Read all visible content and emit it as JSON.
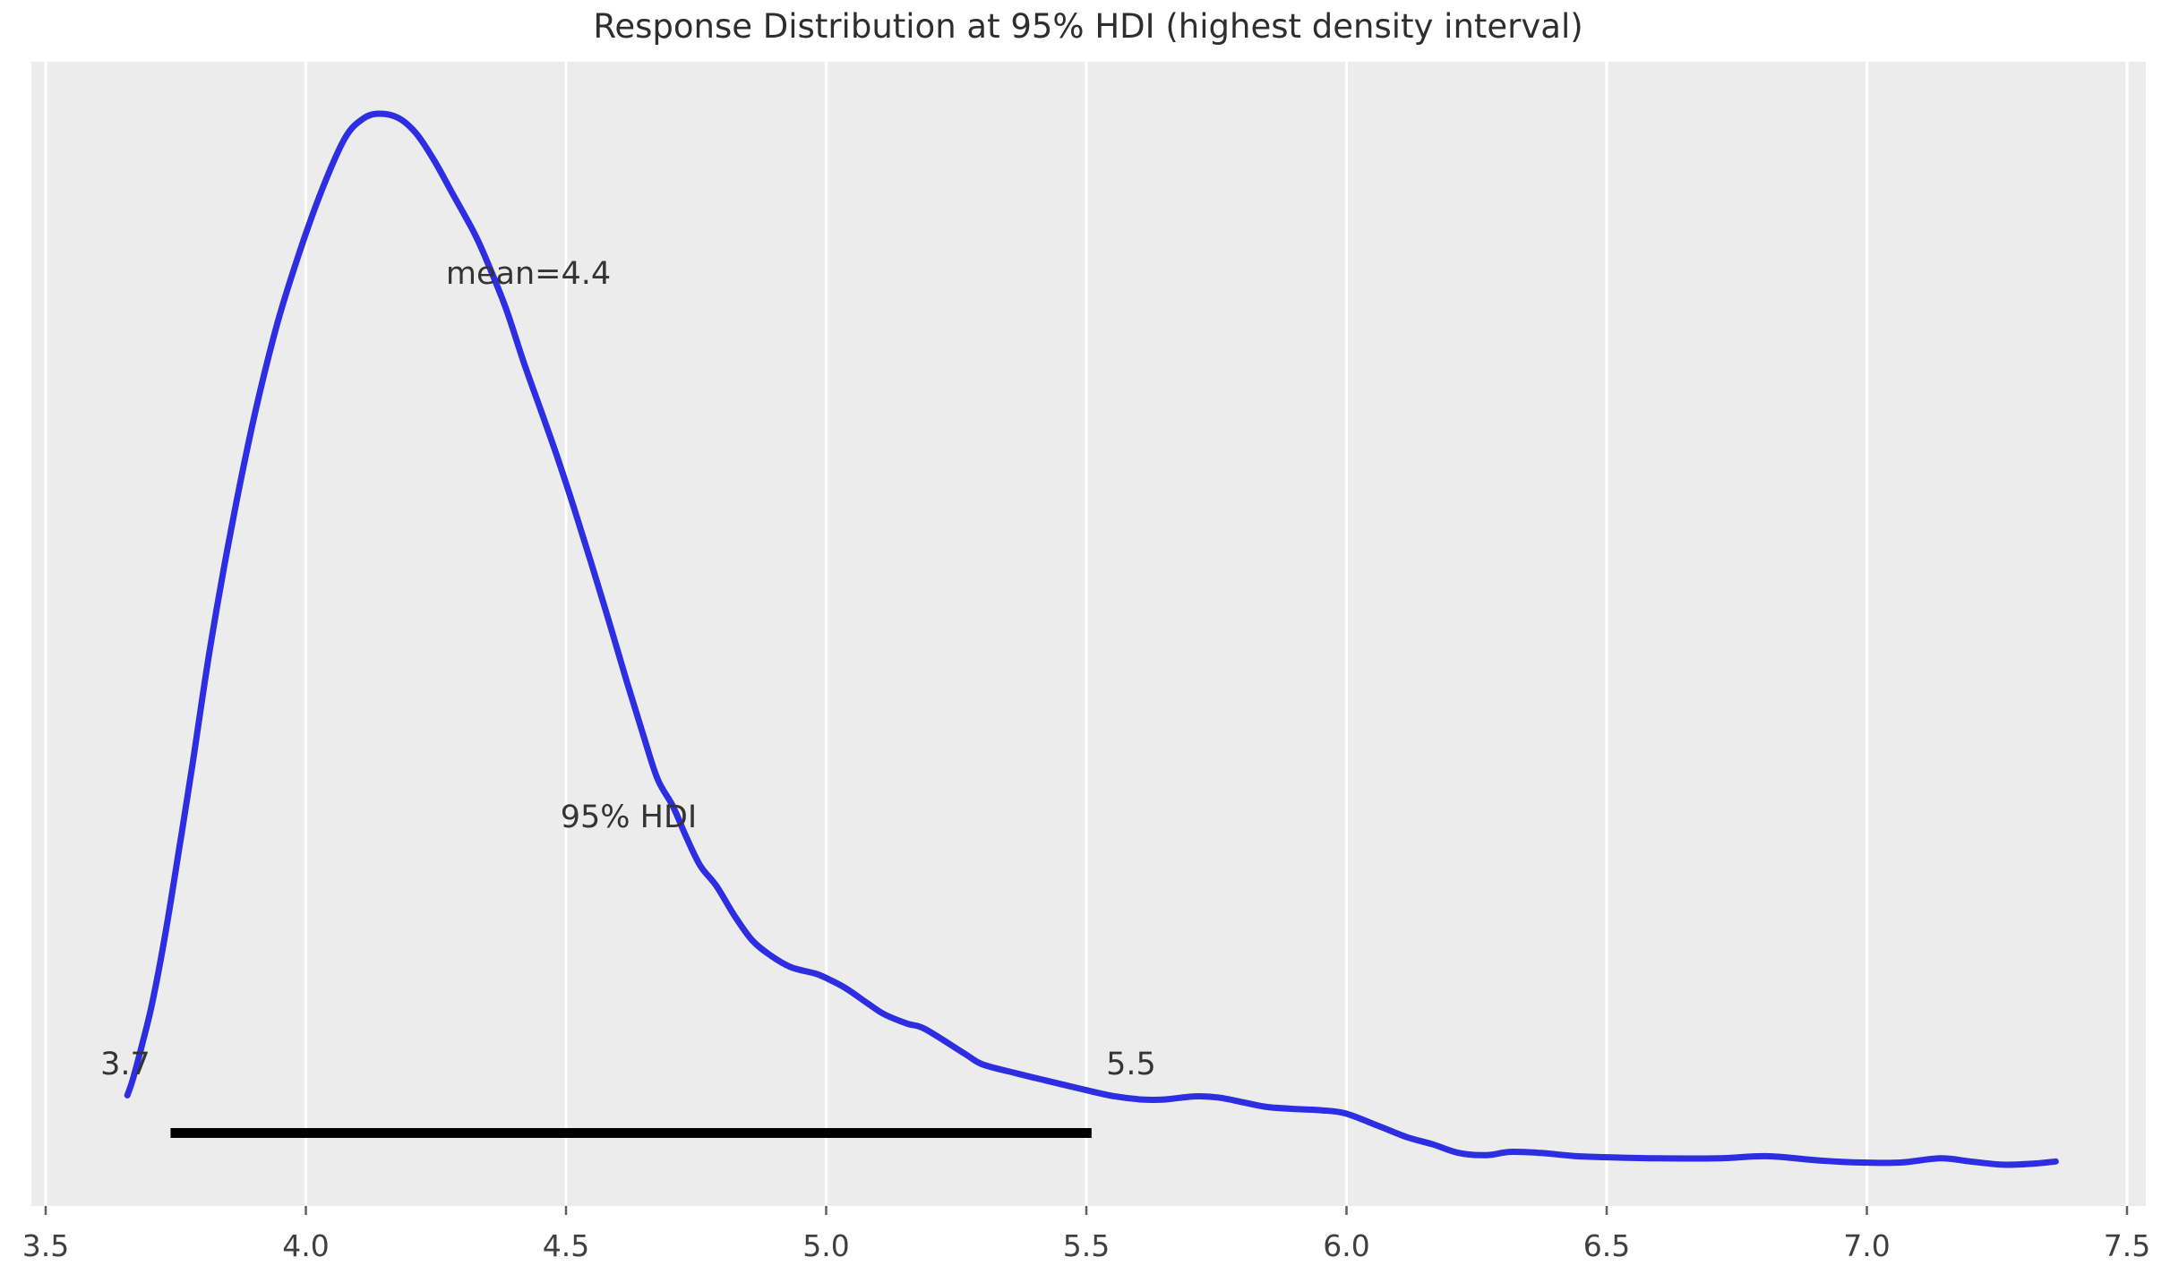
{
  "chart_data": {
    "type": "line",
    "subtype": "kde-posterior-density",
    "title": "Response Distribution at 95% HDI (highest density interval)",
    "xlabel": "",
    "ylabel": "",
    "xlim": [
      3.5,
      7.5
    ],
    "x_tick_labels": [
      "3.5",
      "4.0",
      "4.5",
      "5.0",
      "5.5",
      "6.0",
      "6.5",
      "7.0",
      "7.5"
    ],
    "grid": "vertical-white-on-gray",
    "legend_position": "none",
    "annotations": {
      "mean_label": "mean=4.4",
      "hdi_label": "95% HDI",
      "hdi_lower": "3.7",
      "hdi_upper": "5.5"
    },
    "stats": {
      "mean": 4.4,
      "hdi_probability": 0.95,
      "hdi_lower": 3.7,
      "hdi_upper": 5.5,
      "mode": 4.14
    },
    "hdi_bar_x": [
      3.74,
      5.51
    ],
    "series": [
      {
        "name": "posterior-kde",
        "color": "#2d2de1",
        "points": [
          [
            3.657,
            0.081
          ],
          [
            3.667,
            0.095
          ],
          [
            3.684,
            0.126
          ],
          [
            3.705,
            0.168
          ],
          [
            3.731,
            0.235
          ],
          [
            3.756,
            0.31
          ],
          [
            3.782,
            0.39
          ],
          [
            3.817,
            0.503
          ],
          [
            3.86,
            0.62
          ],
          [
            3.903,
            0.721
          ],
          [
            3.946,
            0.805
          ],
          [
            3.989,
            0.872
          ],
          [
            4.032,
            0.93
          ],
          [
            4.075,
            0.977
          ],
          [
            4.109,
            0.995
          ],
          [
            4.14,
            1.0
          ],
          [
            4.178,
            0.996
          ],
          [
            4.213,
            0.981
          ],
          [
            4.247,
            0.956
          ],
          [
            4.281,
            0.926
          ],
          [
            4.325,
            0.887
          ],
          [
            4.354,
            0.855
          ],
          [
            4.385,
            0.817
          ],
          [
            4.419,
            0.767
          ],
          [
            4.454,
            0.719
          ],
          [
            4.483,
            0.679
          ],
          [
            4.514,
            0.633
          ],
          [
            4.548,
            0.58
          ],
          [
            4.583,
            0.524
          ],
          [
            4.617,
            0.468
          ],
          [
            4.648,
            0.419
          ],
          [
            4.676,
            0.377
          ],
          [
            4.705,
            0.352
          ],
          [
            4.731,
            0.323
          ],
          [
            4.758,
            0.296
          ],
          [
            4.789,
            0.277
          ],
          [
            4.824,
            0.249
          ],
          [
            4.858,
            0.226
          ],
          [
            4.893,
            0.212
          ],
          [
            4.932,
            0.201
          ],
          [
            4.979,
            0.195
          ],
          [
            4.999,
            0.191
          ],
          [
            5.035,
            0.182
          ],
          [
            5.077,
            0.168
          ],
          [
            5.111,
            0.157
          ],
          [
            5.156,
            0.148
          ],
          [
            5.19,
            0.143
          ],
          [
            5.266,
            0.12
          ],
          [
            5.3,
            0.11
          ],
          [
            5.362,
            0.102
          ],
          [
            5.421,
            0.095
          ],
          [
            5.498,
            0.086
          ],
          [
            5.555,
            0.08
          ],
          [
            5.607,
            0.077
          ],
          [
            5.65,
            0.077
          ],
          [
            5.707,
            0.08
          ],
          [
            5.753,
            0.079
          ],
          [
            5.805,
            0.074
          ],
          [
            5.848,
            0.07
          ],
          [
            5.908,
            0.068
          ],
          [
            5.951,
            0.067
          ],
          [
            5.998,
            0.064
          ],
          [
            6.063,
            0.052
          ],
          [
            6.115,
            0.042
          ],
          [
            6.166,
            0.035
          ],
          [
            6.216,
            0.027
          ],
          [
            6.27,
            0.025
          ],
          [
            6.314,
            0.028
          ],
          [
            6.373,
            0.027
          ],
          [
            6.442,
            0.024
          ],
          [
            6.504,
            0.023
          ],
          [
            6.597,
            0.022
          ],
          [
            6.717,
            0.022
          ],
          [
            6.807,
            0.024
          ],
          [
            6.907,
            0.02
          ],
          [
            6.989,
            0.018
          ],
          [
            7.065,
            0.018
          ],
          [
            7.141,
            0.022
          ],
          [
            7.199,
            0.019
          ],
          [
            7.261,
            0.016
          ],
          [
            7.32,
            0.017
          ],
          [
            7.363,
            0.019
          ]
        ]
      }
    ],
    "colors": {
      "curve": "#2d2de1",
      "hdi_bar": "#000000",
      "plot_background": "#ececec",
      "gridline": "#ffffff",
      "title_text": "#2e2e2e",
      "annotation_text": "#343434",
      "tick_label_text": "#404040",
      "tick_mark": "#606060",
      "figure_background": "#ffffff"
    }
  }
}
